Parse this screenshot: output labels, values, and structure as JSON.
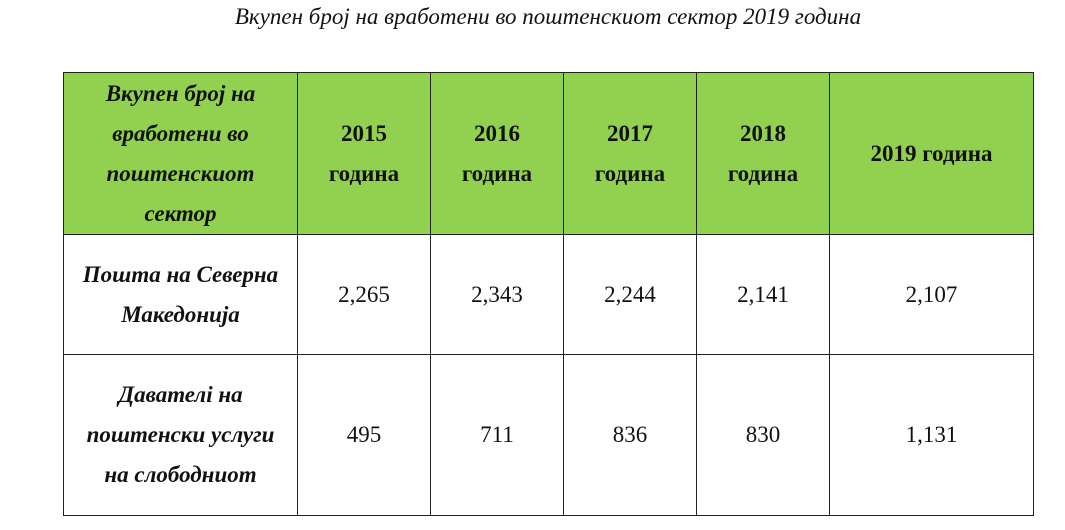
{
  "header": {
    "title": "Вкупен број на вработени во поштенскиот сектор 2019 година"
  },
  "table": {
    "columns": [
      "Вкупен број на вработени во поштенскиот сектор",
      "2015 година",
      "2016 година",
      "2017 година",
      "2018 година",
      "2019 година"
    ],
    "rows": [
      [
        "Пошта на Северна Македонија",
        "2,265",
        "2,343",
        "2,244",
        "2,141",
        "2,107"
      ],
      [
        "Давателi на поштенски услуги на слободниот",
        "495",
        "711",
        "836",
        "830",
        "1,131"
      ]
    ]
  }
}
